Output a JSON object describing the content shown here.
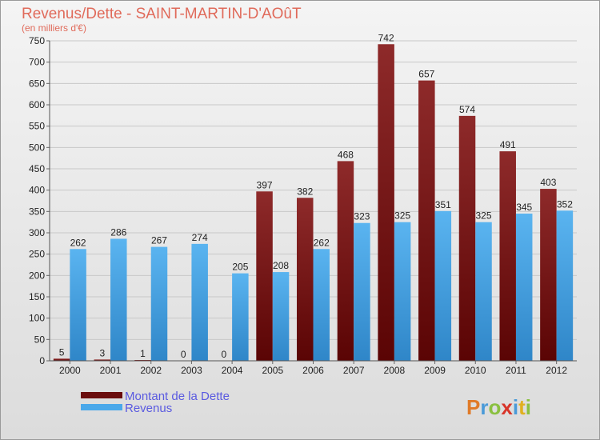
{
  "chart_data": {
    "type": "bar",
    "title": "Revenus/Dette - SAINT-MARTIN-D'AOûT",
    "subtitle": "(en milliers d'€)",
    "categories": [
      "2000",
      "2001",
      "2002",
      "2003",
      "2004",
      "2005",
      "2006",
      "2007",
      "2008",
      "2009",
      "2010",
      "2011",
      "2012"
    ],
    "series": [
      {
        "name": "Montant de la Dette",
        "color": "#7a1414",
        "values": [
          5,
          3,
          1,
          0,
          0,
          397,
          382,
          468,
          742,
          657,
          574,
          491,
          403
        ]
      },
      {
        "name": "Revenus",
        "color": "#4aa8ea",
        "values": [
          262,
          286,
          267,
          274,
          205,
          208,
          262,
          323,
          325,
          351,
          325,
          345,
          352
        ]
      }
    ],
    "ylim": [
      0,
      750
    ],
    "yticks": [
      0,
      50,
      100,
      150,
      200,
      250,
      300,
      350,
      400,
      450,
      500,
      550,
      600,
      650,
      700,
      750
    ],
    "grid": true,
    "legend_position": "bottom-left"
  },
  "brand": {
    "logo": "Proxiti"
  }
}
